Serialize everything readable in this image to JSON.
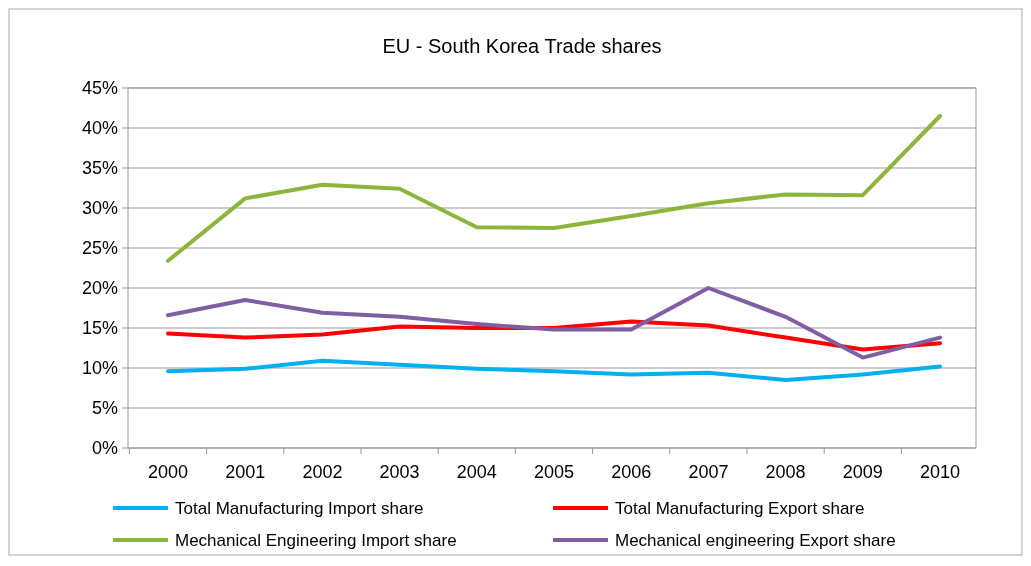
{
  "chart_data": {
    "type": "line",
    "title": "EU - South Korea Trade shares",
    "categories": [
      "2000",
      "2001",
      "2002",
      "2003",
      "2004",
      "2005",
      "2006",
      "2007",
      "2008",
      "2009",
      "2010"
    ],
    "series": [
      {
        "name": "Total Manufacturing Import share",
        "color": "#00b0f0",
        "values": [
          9.6,
          9.9,
          10.9,
          10.4,
          9.9,
          9.6,
          9.2,
          9.4,
          8.5,
          9.2,
          10.2
        ]
      },
      {
        "name": "Total Manufacturing Export share",
        "color": "#ff0000",
        "values": [
          14.3,
          13.8,
          14.2,
          15.2,
          15.0,
          15.0,
          15.8,
          15.3,
          13.8,
          12.3,
          13.1
        ]
      },
      {
        "name": "Mechanical Engineering Import share",
        "color": "#8db53c",
        "values": [
          23.4,
          31.2,
          32.9,
          32.4,
          27.6,
          27.5,
          29.0,
          30.6,
          31.7,
          31.6,
          41.5
        ]
      },
      {
        "name": "Mechanical engineering Export share",
        "color": "#7f5fa3",
        "values": [
          16.6,
          18.5,
          16.9,
          16.4,
          15.5,
          14.8,
          14.8,
          20.0,
          16.4,
          11.3,
          13.8
        ]
      }
    ],
    "ylim": [
      0,
      45
    ],
    "yticks": [
      {
        "value": 0,
        "label": "0%"
      },
      {
        "value": 5,
        "label": "5%"
      },
      {
        "value": 10,
        "label": "10%"
      },
      {
        "value": 15,
        "label": "15%"
      },
      {
        "value": 20,
        "label": "20%"
      },
      {
        "value": 25,
        "label": "25%"
      },
      {
        "value": 30,
        "label": "30%"
      },
      {
        "value": 35,
        "label": "35%"
      },
      {
        "value": 40,
        "label": "40%"
      },
      {
        "value": 45,
        "label": "45%"
      }
    ],
    "grid": "y",
    "legend": "bottom",
    "marker": "none",
    "line_style": "solid"
  }
}
